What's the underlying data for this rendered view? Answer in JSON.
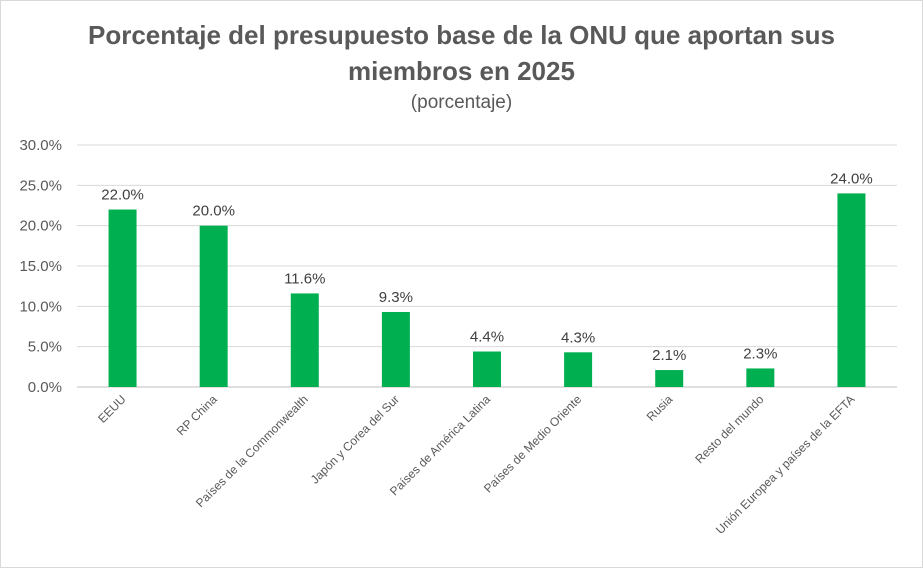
{
  "chart_data": {
    "type": "bar",
    "title_line1": "Porcentaje del presupuesto base de la ONU que aportan sus",
    "title_line2": "miembros en 2025",
    "subtitle": "(porcentaje)",
    "xlabel": "",
    "ylabel": "",
    "ylim": [
      0,
      30
    ],
    "ytick_values": [
      0,
      5,
      10,
      15,
      20,
      25,
      30
    ],
    "ytick_labels": [
      "0.0%",
      "5.0%",
      "10.0%",
      "15.0%",
      "20.0%",
      "25.0%",
      "30.0%"
    ],
    "grid": true,
    "legend": "none",
    "bar_color": "#00b050",
    "categories": [
      "EEUU",
      "RP China",
      "Países de la Commonwealth",
      "Japón y Corea del Sur",
      "Países de América Latina",
      "Países de Medio Oriente",
      "Rusia",
      "Resto del mundo",
      "Unión Europea y países de la EFTA"
    ],
    "values": [
      22.0,
      20.0,
      11.6,
      9.3,
      4.4,
      4.3,
      2.1,
      2.3,
      24.0
    ],
    "value_labels": [
      "22.0%",
      "20.0%",
      "11.6%",
      "9.3%",
      "4.4%",
      "4.3%",
      "2.1%",
      "2.3%",
      "24.0%"
    ]
  }
}
